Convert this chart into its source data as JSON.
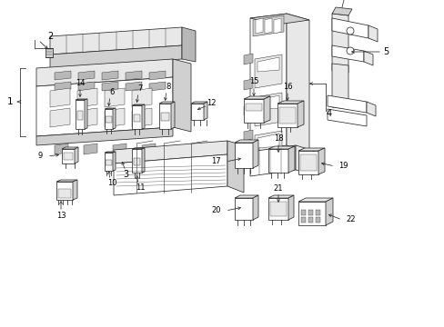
{
  "bg_color": "#ffffff",
  "line_color": "#2a2a2a",
  "lw": 0.55,
  "fig_width": 4.89,
  "fig_height": 3.6,
  "dpi": 100
}
